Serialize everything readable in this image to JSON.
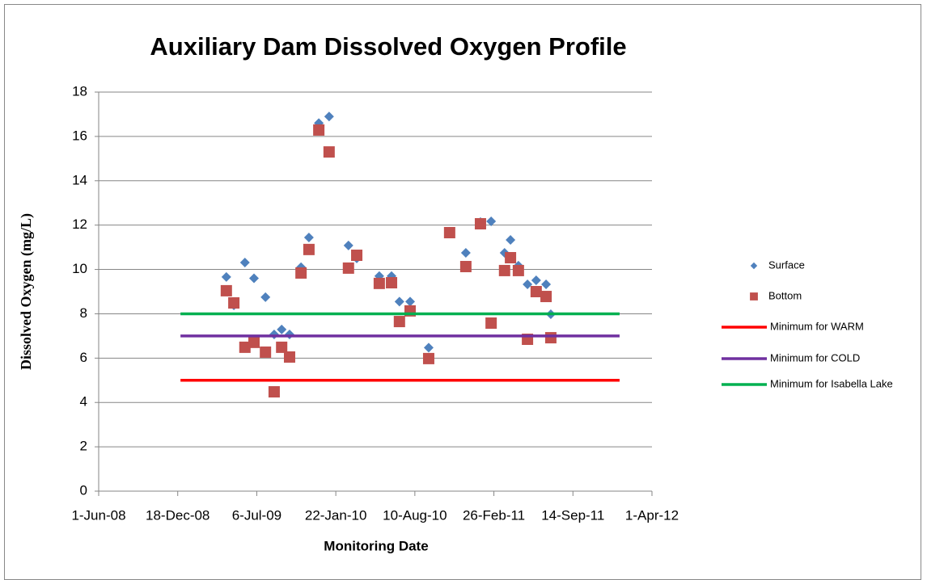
{
  "chart_data": {
    "type": "scatter",
    "title": "Auxiliary Dam Dissolved Oxygen Profile",
    "xlabel": "Monitoring Date",
    "ylabel": "Dissolved Oxygen (mg/L)",
    "xlim": [
      39600,
      41000
    ],
    "xticks": [
      {
        "value": 39600,
        "label": "1-Jun-08"
      },
      {
        "value": 39800,
        "label": "18-Dec-08"
      },
      {
        "value": 40000,
        "label": "6-Jul-09"
      },
      {
        "value": 40200,
        "label": "22-Jan-10"
      },
      {
        "value": 40400,
        "label": "10-Aug-10"
      },
      {
        "value": 40600,
        "label": "26-Feb-11"
      },
      {
        "value": 40800,
        "label": "14-Sep-11"
      },
      {
        "value": 41000,
        "label": "1-Apr-12"
      }
    ],
    "ylim": [
      0,
      18
    ],
    "yticks": [
      0,
      2,
      4,
      6,
      8,
      10,
      12,
      14,
      16,
      18
    ],
    "grid": true,
    "legend": "right",
    "series": [
      {
        "name": "Surface",
        "color": "#4f81bd",
        "mode": "markers",
        "marker": "diamond",
        "x": [
          39923,
          39942,
          39970,
          39993,
          40022,
          40044,
          40063,
          40083,
          40112,
          40132,
          40157,
          40183,
          40232,
          40253,
          40310,
          40341,
          40361,
          40388,
          40435,
          40488,
          40529,
          40566,
          40593,
          40627,
          40642,
          40662,
          40685,
          40707,
          40732,
          40744
        ],
        "values": [
          9.66,
          8.38,
          10.31,
          9.6,
          8.75,
          7.07,
          7.29,
          7.07,
          10.1,
          11.44,
          16.6,
          16.9,
          11.08,
          10.5,
          9.7,
          9.7,
          8.55,
          8.55,
          6.47,
          11.7,
          10.75,
          12.14,
          12.17,
          10.75,
          11.33,
          10.17,
          9.33,
          9.51,
          9.33,
          7.98
        ]
      },
      {
        "name": "Bottom",
        "color": "#c0504d",
        "mode": "markers",
        "marker": "square",
        "x": [
          39923,
          39942,
          39970,
          39993,
          40022,
          40044,
          40063,
          40083,
          40112,
          40132,
          40157,
          40183,
          40232,
          40253,
          40310,
          40341,
          40361,
          40388,
          40435,
          40488,
          40529,
          40566,
          40593,
          40627,
          40642,
          40662,
          40685,
          40707,
          40732,
          40744
        ],
        "values": [
          9.04,
          8.49,
          6.49,
          6.71,
          6.27,
          4.48,
          6.49,
          6.05,
          9.84,
          10.9,
          16.29,
          15.3,
          10.06,
          10.64,
          9.37,
          9.4,
          7.65,
          8.13,
          5.98,
          11.66,
          10.13,
          12.06,
          7.58,
          9.95,
          10.53,
          9.95,
          6.85,
          9.0,
          8.78,
          6.92
        ]
      },
      {
        "name": "Minimum for WARM",
        "color": "#ff0000",
        "mode": "line",
        "x": [
          39807,
          40918
        ],
        "values": [
          5,
          5
        ]
      },
      {
        "name": "Minimum for COLD",
        "color": "#7030a0",
        "mode": "line",
        "x": [
          39807,
          40918
        ],
        "values": [
          7,
          7
        ]
      },
      {
        "name": "Minimum for Isabella Lake",
        "color": "#00b050",
        "mode": "line",
        "x": [
          39807,
          40918
        ],
        "values": [
          8,
          8
        ]
      }
    ]
  }
}
